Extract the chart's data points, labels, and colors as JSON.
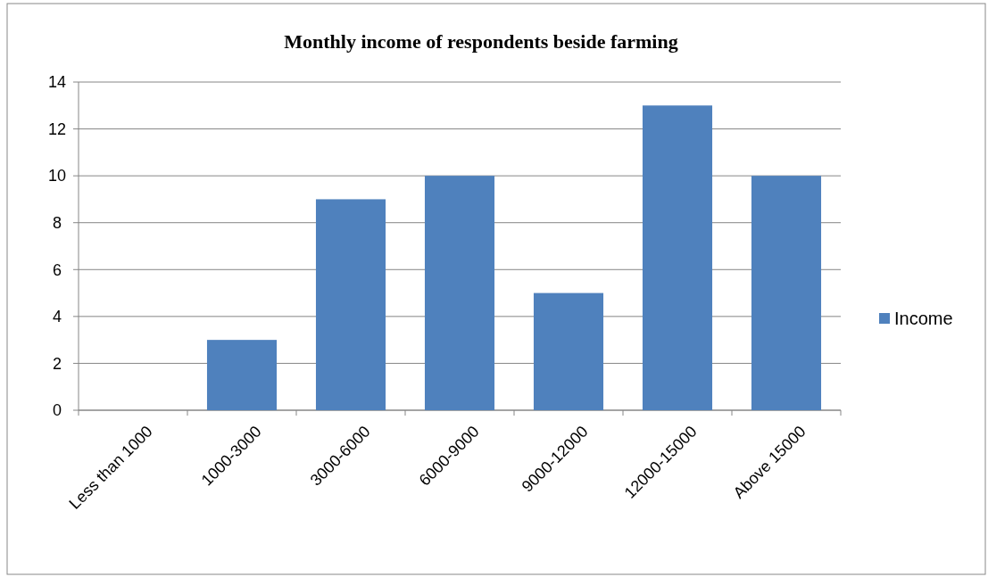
{
  "chart_data": {
    "type": "bar",
    "title": "Monthly income of respondents beside farming",
    "categories": [
      "Less than 1000",
      "1000-3000",
      "3000-6000",
      "6000-9000",
      "9000-12000",
      "12000-15000",
      "Above 15000"
    ],
    "series": [
      {
        "name": "Income",
        "color": "#4f81bd",
        "values": [
          0,
          3,
          9,
          10,
          5,
          13,
          10
        ]
      }
    ],
    "ylim": [
      0,
      14
    ],
    "yticks": [
      0,
      2,
      4,
      6,
      8,
      10,
      12,
      14
    ],
    "grid": "y",
    "legend": "right"
  }
}
